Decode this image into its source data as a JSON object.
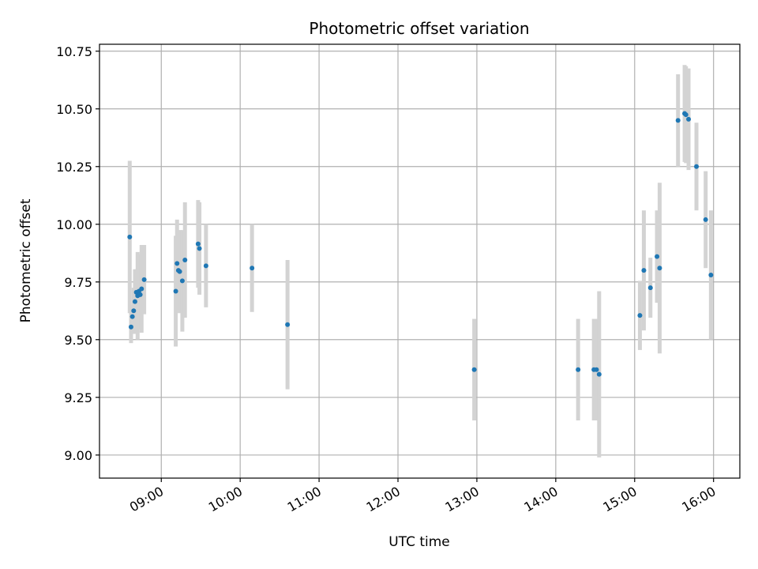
{
  "chart_data": {
    "type": "scatter",
    "title": "Photometric offset variation",
    "xlabel": "UTC time",
    "ylabel": "Photometric offset",
    "x_tick_labels": [
      "09:00",
      "10:00",
      "11:00",
      "12:00",
      "13:00",
      "14:00",
      "15:00",
      "16:00"
    ],
    "y_tick_labels": [
      "9.00",
      "9.25",
      "9.50",
      "9.75",
      "10.00",
      "10.25",
      "10.50",
      "10.75"
    ],
    "y_ticks": [
      9.0,
      9.25,
      9.5,
      9.75,
      10.0,
      10.25,
      10.5,
      10.75
    ],
    "xlim": [
      "08:13",
      "16:20"
    ],
    "ylim": [
      8.9,
      10.78
    ],
    "grid": true,
    "colors": {
      "point": "#1f77b4",
      "errorbar": "#d3d3d3",
      "grid": "#b0b0b0"
    },
    "points": [
      {
        "x": "08:36",
        "y": 9.945,
        "err": 0.33
      },
      {
        "x": "08:37",
        "y": 9.555,
        "err": 0.07
      },
      {
        "x": "08:38",
        "y": 9.6,
        "err": 0.05
      },
      {
        "x": "08:39",
        "y": 9.625,
        "err": 0.1
      },
      {
        "x": "08:40",
        "y": 9.665,
        "err": 0.14
      },
      {
        "x": "08:41",
        "y": 9.705,
        "err": 0.1
      },
      {
        "x": "08:42",
        "y": 9.69,
        "err": 0.19
      },
      {
        "x": "08:43",
        "y": 9.71,
        "err": 0.16
      },
      {
        "x": "08:44",
        "y": 9.695,
        "err": 0.15
      },
      {
        "x": "08:45",
        "y": 9.72,
        "err": 0.19
      },
      {
        "x": "08:47",
        "y": 9.76,
        "err": 0.15
      },
      {
        "x": "09:11",
        "y": 9.71,
        "err": 0.24
      },
      {
        "x": "09:12",
        "y": 9.83,
        "err": 0.19
      },
      {
        "x": "09:13",
        "y": 9.8,
        "err": 0.17
      },
      {
        "x": "09:14",
        "y": 9.795,
        "err": 0.18
      },
      {
        "x": "09:16",
        "y": 9.755,
        "err": 0.22
      },
      {
        "x": "09:18",
        "y": 9.845,
        "err": 0.25
      },
      {
        "x": "09:28",
        "y": 9.915,
        "err": 0.19
      },
      {
        "x": "09:29",
        "y": 9.895,
        "err": 0.2
      },
      {
        "x": "09:34",
        "y": 9.82,
        "err": 0.18
      },
      {
        "x": "10:09",
        "y": 9.81,
        "err": 0.19
      },
      {
        "x": "10:36",
        "y": 9.565,
        "err": 0.28
      },
      {
        "x": "12:58",
        "y": 9.37,
        "err": 0.22
      },
      {
        "x": "14:17",
        "y": 9.37,
        "err": 0.22
      },
      {
        "x": "14:29",
        "y": 9.37,
        "err": 0.22
      },
      {
        "x": "14:31",
        "y": 9.37,
        "err": 0.22
      },
      {
        "x": "14:33",
        "y": 9.35,
        "err": 0.36
      },
      {
        "x": "15:04",
        "y": 9.605,
        "err": 0.15
      },
      {
        "x": "15:07",
        "y": 9.8,
        "err": 0.26
      },
      {
        "x": "15:12",
        "y": 9.725,
        "err": 0.13
      },
      {
        "x": "15:17",
        "y": 9.86,
        "err": 0.2
      },
      {
        "x": "15:19",
        "y": 9.81,
        "err": 0.37
      },
      {
        "x": "15:33",
        "y": 10.45,
        "err": 0.2
      },
      {
        "x": "15:38",
        "y": 10.48,
        "err": 0.21
      },
      {
        "x": "15:39",
        "y": 10.475,
        "err": 0.21
      },
      {
        "x": "15:41",
        "y": 10.455,
        "err": 0.22
      },
      {
        "x": "15:47",
        "y": 10.25,
        "err": 0.19
      },
      {
        "x": "15:54",
        "y": 10.02,
        "err": 0.21
      },
      {
        "x": "15:58",
        "y": 9.78,
        "err": 0.28
      }
    ]
  }
}
